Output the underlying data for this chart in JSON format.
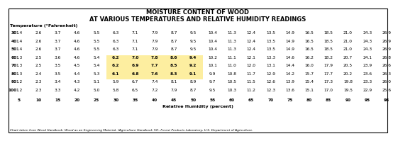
{
  "title1": "MOISTURE CONTENT OF WOOD",
  "title2": "AT VARIOUS TEMPERATURES AND RELATIVE HUMIDITY READINGS",
  "temp_label": "Temperature (°Fahrenheit)",
  "rh_label": "Relative Humidity (percent)",
  "footer": "Chart taken from Wood Handbook: Wood as an Engineering Material, (Agriculture Handbook 72), Forest Products Laboratory, U.S. Department of Agriculture.",
  "row_headers": [
    30,
    40,
    50,
    60,
    70,
    80,
    90,
    100
  ],
  "col_headers": [
    5,
    10,
    15,
    20,
    25,
    30,
    35,
    40,
    45,
    50,
    55,
    60,
    65,
    70,
    75,
    80,
    85,
    90,
    95,
    98
  ],
  "table_data": [
    [
      1.4,
      2.6,
      3.7,
      4.6,
      5.5,
      6.3,
      7.1,
      7.9,
      8.7,
      9.5,
      10.4,
      11.3,
      12.4,
      13.5,
      14.9,
      16.5,
      18.5,
      21.0,
      24.3,
      26.9
    ],
    [
      1.4,
      2.6,
      3.7,
      4.6,
      5.5,
      6.3,
      7.1,
      7.9,
      8.7,
      9.5,
      10.4,
      11.3,
      12.4,
      13.5,
      14.9,
      16.5,
      18.5,
      21.0,
      24.3,
      26.9
    ],
    [
      1.4,
      2.6,
      3.7,
      4.6,
      5.5,
      6.3,
      7.1,
      7.9,
      8.7,
      9.5,
      10.4,
      11.3,
      12.4,
      13.5,
      14.9,
      16.5,
      18.5,
      21.0,
      24.3,
      26.9
    ],
    [
      1.3,
      2.5,
      3.6,
      4.6,
      5.4,
      6.2,
      7.0,
      7.8,
      8.6,
      9.4,
      10.2,
      11.1,
      12.1,
      13.3,
      14.6,
      16.2,
      18.2,
      20.7,
      24.1,
      26.8
    ],
    [
      1.3,
      2.5,
      3.5,
      4.5,
      5.4,
      6.2,
      6.9,
      7.7,
      8.5,
      9.2,
      10.1,
      11.0,
      12.0,
      13.1,
      14.4,
      16.0,
      17.9,
      20.5,
      23.9,
      26.6
    ],
    [
      1.3,
      2.4,
      3.5,
      4.4,
      5.3,
      6.1,
      6.8,
      7.6,
      8.3,
      9.1,
      9.9,
      10.8,
      11.7,
      12.9,
      14.2,
      15.7,
      17.7,
      20.2,
      23.6,
      26.3
    ],
    [
      1.2,
      2.3,
      3.4,
      4.3,
      5.1,
      5.9,
      6.7,
      7.4,
      8.1,
      8.9,
      9.7,
      10.5,
      11.5,
      12.6,
      13.9,
      15.4,
      17.3,
      19.8,
      23.3,
      26.0
    ],
    [
      1.2,
      2.3,
      3.3,
      4.2,
      5.0,
      5.8,
      6.5,
      7.2,
      7.9,
      8.7,
      9.5,
      10.3,
      11.2,
      12.3,
      13.6,
      15.1,
      17.0,
      19.5,
      22.9,
      25.6
    ]
  ],
  "highlight_rows": [
    3,
    4,
    5
  ],
  "highlight_cols": [
    5,
    6,
    7,
    8,
    9
  ],
  "highlight_color": "#FDEEA0",
  "bg_color": "#FFFFFF",
  "border_color": "#000000",
  "text_color": "#000000",
  "title_fontsize": 6.0,
  "label_fontsize": 4.6,
  "data_fontsize": 4.2,
  "footer_fontsize": 3.2
}
